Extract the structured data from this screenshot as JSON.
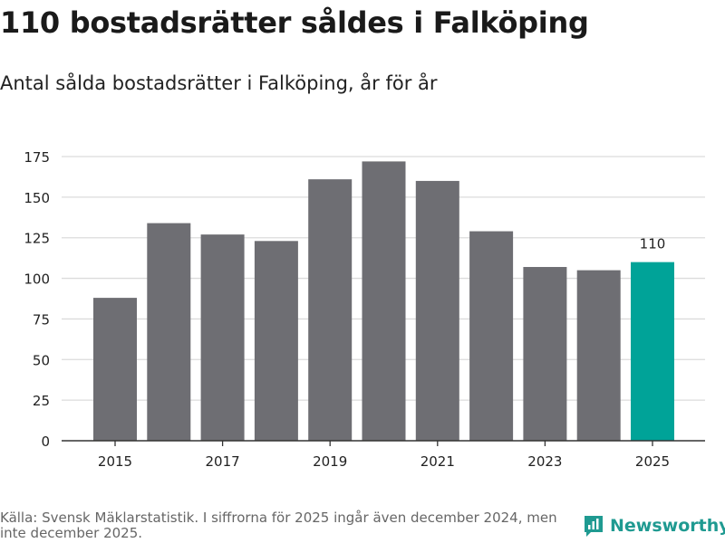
{
  "header": {
    "title": "110 bostadsrätter såldes i Falköping",
    "subtitle": "Antal sålda bostadsrätter i Falköping, år för år"
  },
  "chart_data": {
    "type": "bar",
    "categories": [
      "2015",
      "2016",
      "2017",
      "2018",
      "2019",
      "2020",
      "2021",
      "2022",
      "2023",
      "2024",
      "2025"
    ],
    "values": [
      88,
      134,
      127,
      123,
      161,
      172,
      160,
      129,
      107,
      105,
      110
    ],
    "x_tick_labels": [
      "2015",
      "2017",
      "2019",
      "2021",
      "2023",
      "2025"
    ],
    "y_ticks": [
      0,
      25,
      50,
      75,
      100,
      125,
      150,
      175
    ],
    "ylim": [
      0,
      175
    ],
    "highlight_index": 10,
    "highlight_label": "110",
    "colors": {
      "bar": "#6e6e73",
      "highlight": "#00a398",
      "grid": "#dcdcdc",
      "axis": "#333333"
    },
    "grid": true,
    "xlabel": "",
    "ylabel": ""
  },
  "footer": {
    "source": "Källa: Svensk Mäklarstatistik. I siffrorna för 2025 ingår även december 2024, men inte december 2025.",
    "brand": "Newsworthy",
    "brand_color": "#1f9a91",
    "brand_icon": "newsworthy-logo-icon"
  }
}
